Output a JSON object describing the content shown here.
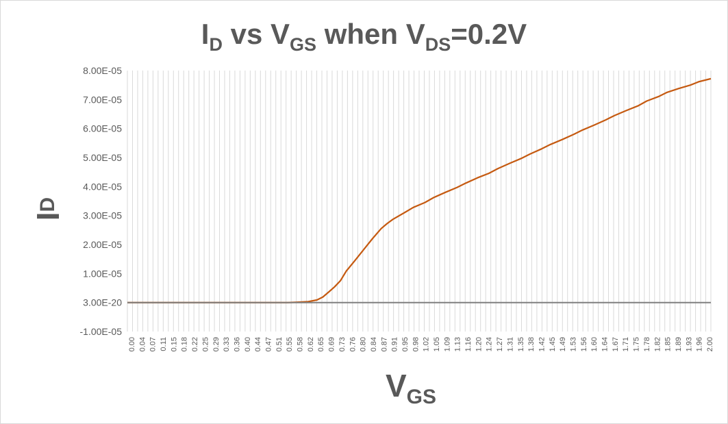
{
  "chart_data": {
    "type": "line",
    "title": {
      "main": "I",
      "main_sub": "D",
      "mid": " vs V",
      "mid_sub": "GS",
      "end": " when V",
      "end_sub": "DS",
      "tail": "=0.2V"
    },
    "ylabel": {
      "main": "I",
      "sub": "D"
    },
    "xlabel": {
      "main": "V",
      "sub": "GS"
    },
    "ylim": [
      -1e-05,
      8e-05
    ],
    "xlim": [
      0.0,
      2.0
    ],
    "grid": {
      "vertical": true,
      "horizontal": false
    },
    "y_tick_labels": [
      "8.00E-05",
      "7.00E-05",
      "6.00E-05",
      "5.00E-05",
      "4.00E-05",
      "3.00E-05",
      "2.00E-05",
      "1.00E-05",
      "3.00E-20",
      "-1.00E-05"
    ],
    "y_tick_values": [
      8e-05,
      7e-05,
      6e-05,
      5e-05,
      4e-05,
      3e-05,
      2e-05,
      1e-05,
      0,
      -1e-05
    ],
    "x_tick_labels": [
      "0.00",
      "0.04",
      "0.07",
      "0.11",
      "0.15",
      "0.18",
      "0.22",
      "0.25",
      "0.29",
      "0.33",
      "0.36",
      "0.40",
      "0.44",
      "0.47",
      "0.51",
      "0.55",
      "0.58",
      "0.62",
      "0.65",
      "0.69",
      "0.73",
      "0.76",
      "0.80",
      "0.84",
      "0.87",
      "0.91",
      "0.95",
      "0.98",
      "1.02",
      "1.05",
      "1.09",
      "1.13",
      "1.16",
      "1.20",
      "1.24",
      "1.27",
      "1.31",
      "1.35",
      "1.38",
      "1.42",
      "1.45",
      "1.49",
      "1.53",
      "1.56",
      "1.60",
      "1.64",
      "1.67",
      "1.71",
      "1.75",
      "1.78",
      "1.82",
      "1.85",
      "1.89",
      "1.93",
      "1.96",
      "2.00"
    ],
    "series": [
      {
        "name": "",
        "color": "#c55a11",
        "x": [
          0.0,
          0.55,
          0.58,
          0.62,
          0.65,
          0.67,
          0.69,
          0.71,
          0.73,
          0.75,
          0.78,
          0.8,
          0.82,
          0.84,
          0.87,
          0.89,
          0.91,
          0.95,
          0.98,
          1.02,
          1.05,
          1.09,
          1.13,
          1.16,
          1.2,
          1.24,
          1.27,
          1.31,
          1.35,
          1.38,
          1.42,
          1.45,
          1.49,
          1.53,
          1.56,
          1.6,
          1.64,
          1.67,
          1.71,
          1.75,
          1.78,
          1.82,
          1.85,
          1.89,
          1.93,
          1.96,
          2.0
        ],
        "y": [
          0,
          0,
          1e-07,
          3e-07,
          9e-07,
          1.9e-06,
          3.6e-06,
          5.4e-06,
          7.5e-06,
          1.08e-05,
          1.45e-05,
          1.7e-05,
          1.95e-05,
          2.2e-05,
          2.55e-05,
          2.72e-05,
          2.87e-05,
          3.1e-05,
          3.28e-05,
          3.45e-05,
          3.62e-05,
          3.8e-05,
          3.97e-05,
          4.12e-05,
          4.3e-05,
          4.46e-05,
          4.62e-05,
          4.8e-05,
          4.97e-05,
          5.12e-05,
          5.3e-05,
          5.45e-05,
          5.62e-05,
          5.8e-05,
          5.95e-05,
          6.12e-05,
          6.3e-05,
          6.45e-05,
          6.62e-05,
          6.78e-05,
          6.95e-05,
          7.1e-05,
          7.25e-05,
          7.38e-05,
          7.5e-05,
          7.62e-05,
          7.72e-05
        ]
      },
      {
        "name": "",
        "color": "#7f7f7f",
        "x": [
          0.0,
          2.0
        ],
        "y": [
          0,
          0
        ]
      }
    ]
  }
}
